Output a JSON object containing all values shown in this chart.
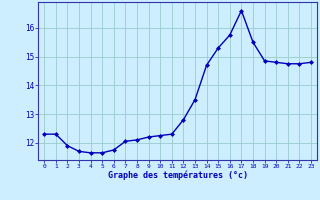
{
  "x": [
    0,
    1,
    2,
    3,
    4,
    5,
    6,
    7,
    8,
    9,
    10,
    11,
    12,
    13,
    14,
    15,
    16,
    17,
    18,
    19,
    20,
    21,
    22,
    23
  ],
  "y": [
    12.3,
    12.3,
    11.9,
    11.7,
    11.65,
    11.65,
    11.75,
    12.05,
    12.1,
    12.2,
    12.25,
    12.3,
    12.8,
    13.5,
    14.7,
    15.3,
    15.75,
    16.6,
    15.5,
    14.85,
    14.8,
    14.75,
    14.75,
    14.8
  ],
  "xlabel": "Graphe des températures (°c)",
  "ylim": [
    11.4,
    16.9
  ],
  "yticks": [
    12,
    13,
    14,
    15,
    16
  ],
  "xticks": [
    0,
    1,
    2,
    3,
    4,
    5,
    6,
    7,
    8,
    9,
    10,
    11,
    12,
    13,
    14,
    15,
    16,
    17,
    18,
    19,
    20,
    21,
    22,
    23
  ],
  "line_color": "#0000bb",
  "marker_color": "#0000bb",
  "bg_color": "#cceeff",
  "grid_color": "#99cccc",
  "axis_color": "#3333aa",
  "tick_label_color": "#0000bb",
  "xlabel_color": "#0000bb",
  "marker": "D",
  "marker_size": 2.0,
  "line_width": 1.0
}
